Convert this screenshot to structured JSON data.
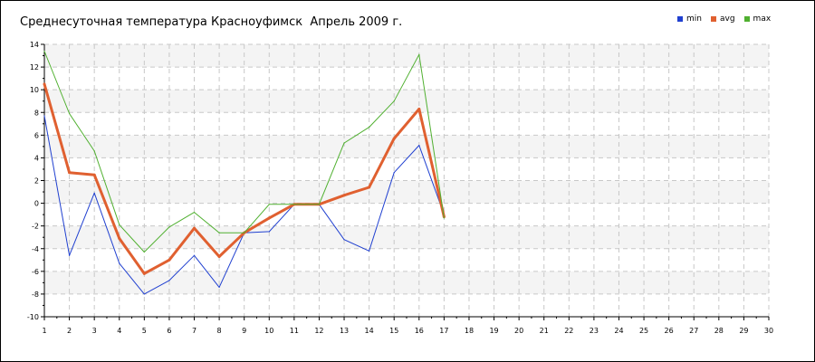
{
  "chart_data": {
    "type": "line",
    "title": "Среднесуточная температура Красноуфимск  Апрель 2009 г.",
    "xlabel": "",
    "ylabel": "",
    "xlim": [
      1,
      30
    ],
    "ylim": [
      -10,
      14
    ],
    "x_ticks": [
      1,
      2,
      3,
      4,
      5,
      6,
      7,
      8,
      9,
      10,
      11,
      12,
      13,
      14,
      15,
      16,
      17,
      18,
      19,
      20,
      21,
      22,
      23,
      24,
      25,
      26,
      27,
      28,
      29,
      30
    ],
    "y_ticks": [
      -10,
      -8,
      -6,
      -4,
      -2,
      0,
      2,
      4,
      6,
      8,
      10,
      12,
      14
    ],
    "grid": true,
    "legend_position": "top-right",
    "x": [
      1,
      2,
      3,
      4,
      5,
      6,
      7,
      8,
      9,
      10,
      11,
      12,
      13,
      14,
      15,
      16,
      17
    ],
    "series": [
      {
        "name": "min",
        "color": "#2040d0",
        "stroke": 1,
        "values": [
          7.7,
          -4.6,
          0.9,
          -5.3,
          -8.0,
          -6.8,
          -4.6,
          -7.4,
          -2.6,
          -2.5,
          -0.1,
          -0.1,
          -3.2,
          -4.2,
          2.7,
          5.1,
          -1.0
        ]
      },
      {
        "name": "avg",
        "color": "#e06030",
        "stroke": 3,
        "values": [
          10.5,
          2.7,
          2.5,
          -3.1,
          -6.2,
          -5.0,
          -2.2,
          -4.7,
          -2.6,
          -1.3,
          -0.1,
          -0.1,
          0.7,
          1.4,
          5.7,
          8.3,
          -1.2
        ]
      },
      {
        "name": "max",
        "color": "#50b030",
        "stroke": 1,
        "values": [
          13.4,
          7.9,
          4.6,
          -1.9,
          -4.3,
          -2.1,
          -0.8,
          -2.6,
          -2.6,
          -0.1,
          -0.1,
          -0.1,
          5.3,
          6.7,
          9.0,
          13.1,
          -1.3
        ]
      }
    ]
  }
}
